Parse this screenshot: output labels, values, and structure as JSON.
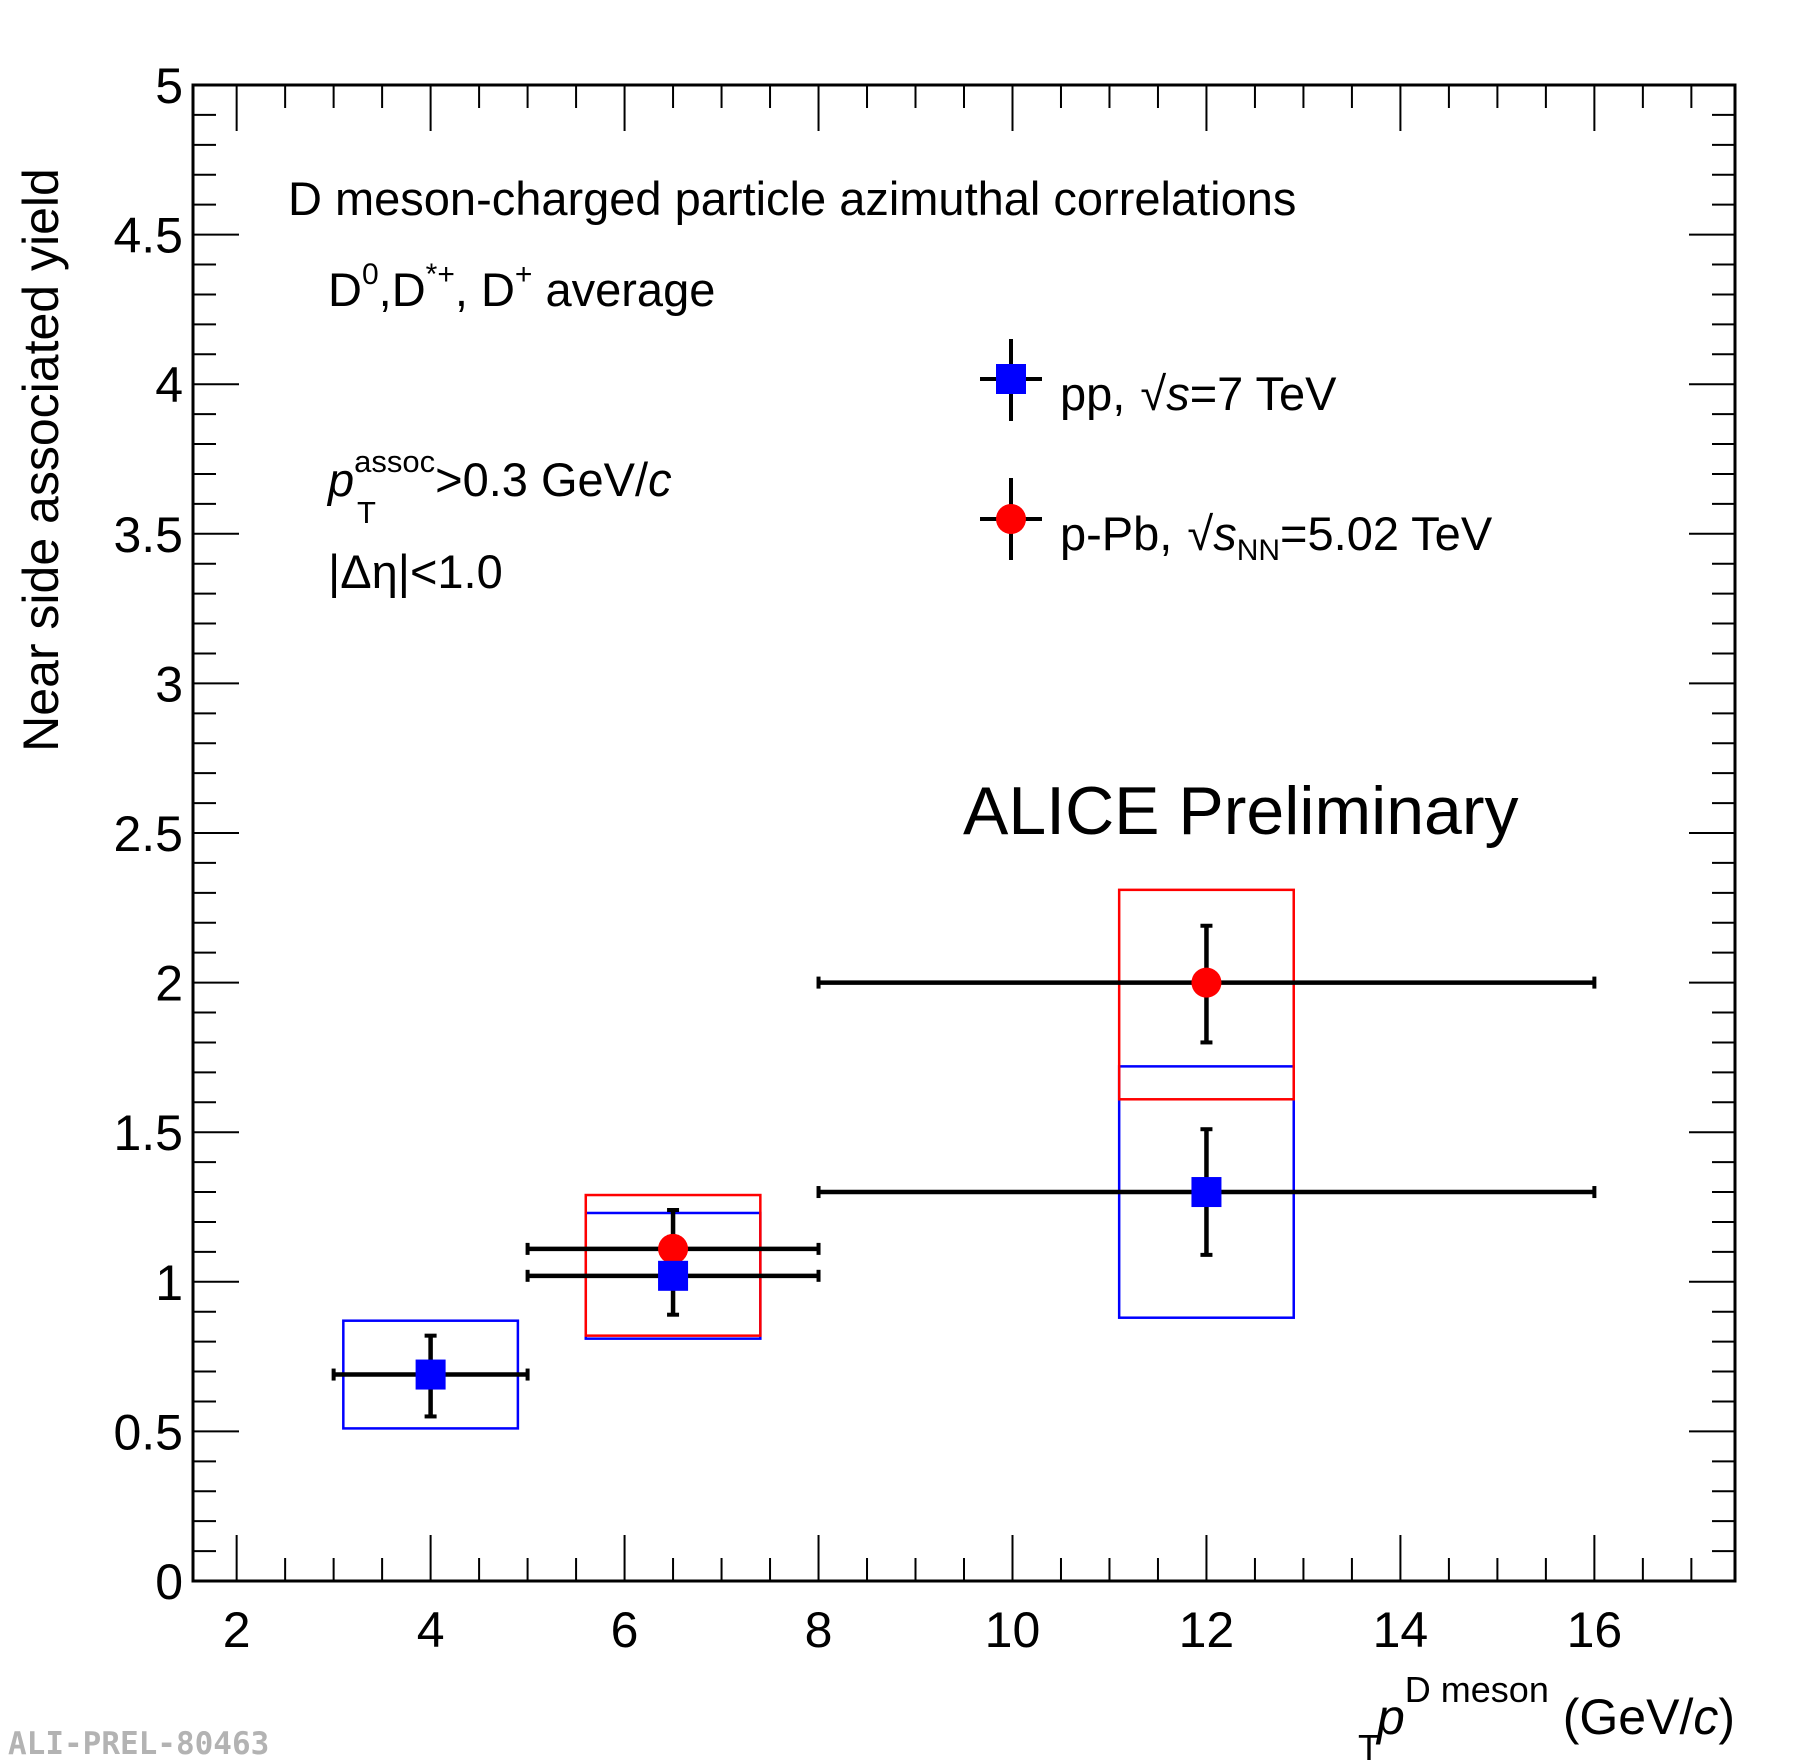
{
  "chart_data": {
    "type": "scatter",
    "annotations": {
      "title_line": "D meson-charged particle azimuthal correlations",
      "species": {
        "d": "D",
        "sup0": "0",
        "comma1": ",D",
        "supStarPlus": "*+",
        "comma2": ", D",
        "supPlus": "+",
        "rest": " average"
      },
      "pt_cut": {
        "p": "p",
        "sup": "assoc",
        "sub": "T",
        "rest": ">0.3 GeV/",
        "c": "c"
      },
      "eta_cut": "|Δη|<1.0",
      "preliminary": "ALICE Preliminary",
      "watermark": "ALI-PREL-80463"
    },
    "xaxis": {
      "label": {
        "p": "p",
        "sup": "D meson",
        "sub": "T",
        "rest": " (GeV/",
        "c": "c",
        "close": ")"
      },
      "range": [
        1.55,
        17.45
      ],
      "ticks": [
        2,
        4,
        6,
        8,
        10,
        12,
        14,
        16
      ],
      "tick_labels": [
        "2",
        "4",
        "6",
        "8",
        "10",
        "12",
        "14",
        "16"
      ]
    },
    "yaxis": {
      "label": "Near side associated yield",
      "range": [
        0,
        5
      ],
      "ticks": [
        0,
        0.5,
        1,
        1.5,
        2,
        2.5,
        3,
        3.5,
        4,
        4.5,
        5
      ],
      "tick_labels": [
        "0",
        "0.5",
        "1",
        "1.5",
        "2",
        "2.5",
        "3",
        "3.5",
        "4",
        "4.5",
        "5"
      ]
    },
    "series": [
      {
        "name": "pp",
        "legend": {
          "pre": "pp, ",
          "s": "s",
          "sub": "",
          "rest": "=7 TeV"
        },
        "marker": "square",
        "color": "#0000ff",
        "points": [
          {
            "x": 4.0,
            "y": 0.69,
            "xlo": 3.0,
            "xhi": 5.0,
            "ylo": 0.55,
            "yhi": 0.82,
            "syslo": 0.51,
            "syshi": 0.87
          },
          {
            "x": 6.5,
            "y": 1.02,
            "xlo": 5.0,
            "xhi": 8.0,
            "ylo": 0.89,
            "yhi": 1.15,
            "syslo": 0.81,
            "syshi": 1.23
          },
          {
            "x": 12.0,
            "y": 1.3,
            "xlo": 8.0,
            "xhi": 16.0,
            "ylo": 1.09,
            "yhi": 1.51,
            "syslo": 0.88,
            "syshi": 1.72
          }
        ]
      },
      {
        "name": "p-Pb",
        "legend": {
          "pre": "p-Pb, ",
          "s": "s",
          "sub": "NN",
          "rest": "=5.02 TeV"
        },
        "marker": "circle",
        "color": "#ff0000",
        "points": [
          {
            "x": 6.5,
            "y": 1.11,
            "xlo": 5.0,
            "xhi": 8.0,
            "ylo": 0.98,
            "yhi": 1.24,
            "syslo": 0.82,
            "syshi": 1.29
          },
          {
            "x": 12.0,
            "y": 2.0,
            "xlo": 8.0,
            "xhi": 16.0,
            "ylo": 1.8,
            "yhi": 2.19,
            "syslo": 1.61,
            "syshi": 2.31
          }
        ]
      }
    ],
    "legend_position": "top-right",
    "grid": false
  }
}
